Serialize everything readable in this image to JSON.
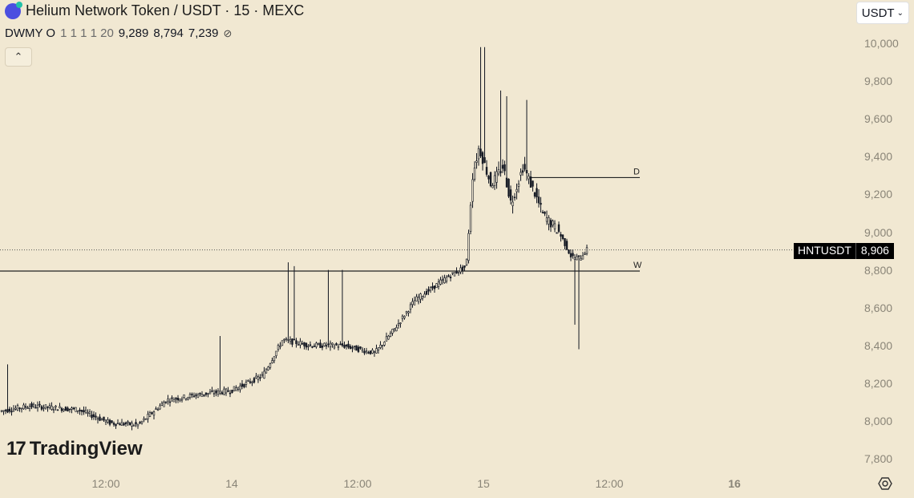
{
  "header": {
    "title": "Helium Network Token / USDT · 15 · MEXC",
    "logo_icon": "helium-token-icon"
  },
  "indicator": {
    "name": "DWMY O",
    "params": "1 1 1 1 20",
    "values": [
      "9,289",
      "8,794",
      "7,239"
    ],
    "hide_icon": "eye-off-icon"
  },
  "currency": {
    "label": "USDT"
  },
  "last_price": {
    "symbol": "HNTUSDT",
    "value": "8,906",
    "level": 8906
  },
  "branding": {
    "name": "TradingView"
  },
  "chart_data": {
    "type": "candlestick",
    "y_ticks": [
      "10,000",
      "9,800",
      "9,600",
      "9,400",
      "9,200",
      "9,000",
      "8,800",
      "8,600",
      "8,400",
      "8,200",
      "8,000",
      "7,800"
    ],
    "x_ticks": [
      {
        "label": "12:00",
        "bold": false
      },
      {
        "label": "14",
        "bold": false
      },
      {
        "label": "12:00",
        "bold": false
      },
      {
        "label": "15",
        "bold": false
      },
      {
        "label": "12:00",
        "bold": false
      },
      {
        "label": "16",
        "bold": true
      }
    ],
    "ylim": [
      7740,
      10050
    ],
    "levels": [
      {
        "label": "D",
        "value": 9289
      },
      {
        "label": "W",
        "value": 8794
      }
    ],
    "price_line": 8906,
    "colors": {
      "candle": "#131722",
      "background": "#f1e8d2"
    }
  }
}
